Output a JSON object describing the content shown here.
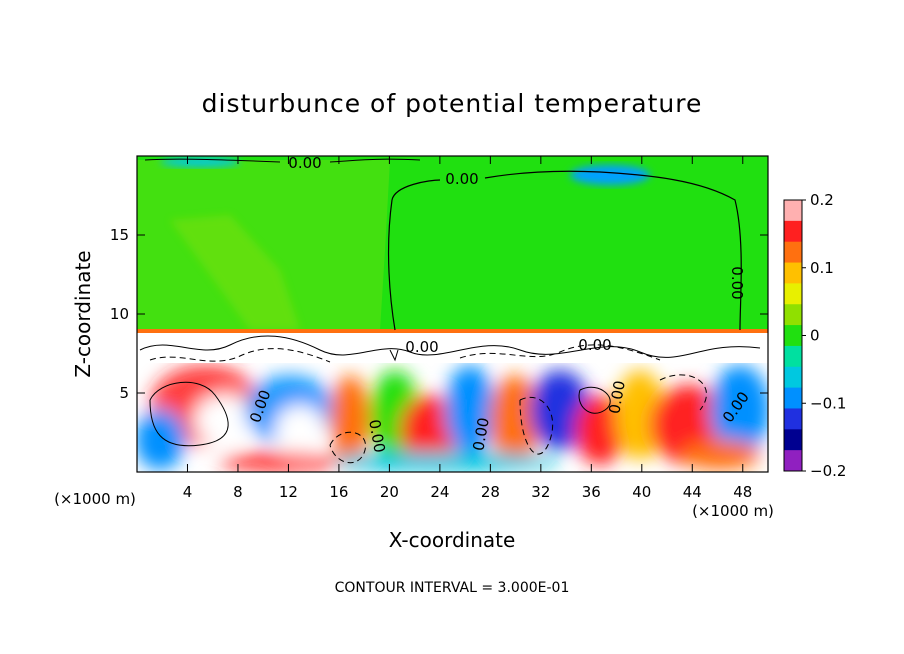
{
  "chart_data": {
    "type": "heatmap",
    "title": "disturbunce of potential temperature",
    "xlabel": "X-coordinate",
    "ylabel": "Z-coordinate",
    "x_unit_left": "(×1000 m)",
    "x_unit_right": "(×1000 m)",
    "xlim": [
      0,
      50
    ],
    "ylim": [
      0,
      20
    ],
    "xticks": [
      4,
      8,
      12,
      16,
      20,
      24,
      28,
      32,
      36,
      40,
      44,
      48
    ],
    "yticks": [
      5,
      10,
      15
    ],
    "colorbar": {
      "min": -0.2,
      "max": 0.2,
      "ticks": [
        0.2,
        0.1,
        0,
        -0.1,
        -0.2
      ],
      "tick_labels": [
        "0.2",
        "0.1",
        "0",
        "−0.1",
        "−0.2"
      ],
      "colors": [
        "#ffb0b0",
        "#ff2020",
        "#ff7010",
        "#ffc000",
        "#e8f000",
        "#90e000",
        "#20e010",
        "#00e0a0",
        "#00c8e0",
        "#0090ff",
        "#2030e0",
        "#000090",
        "#9020c0"
      ]
    },
    "upper_field_value": 0.0,
    "contour_labels": [
      "0.00",
      "0.00",
      "0.00",
      "0.00",
      "0.00",
      "0.00",
      "0.00",
      "0.00",
      "0.00",
      "0.00"
    ],
    "contour_interval_note": "CONTOUR INTERVAL = 3.000E-01",
    "grid": false
  }
}
